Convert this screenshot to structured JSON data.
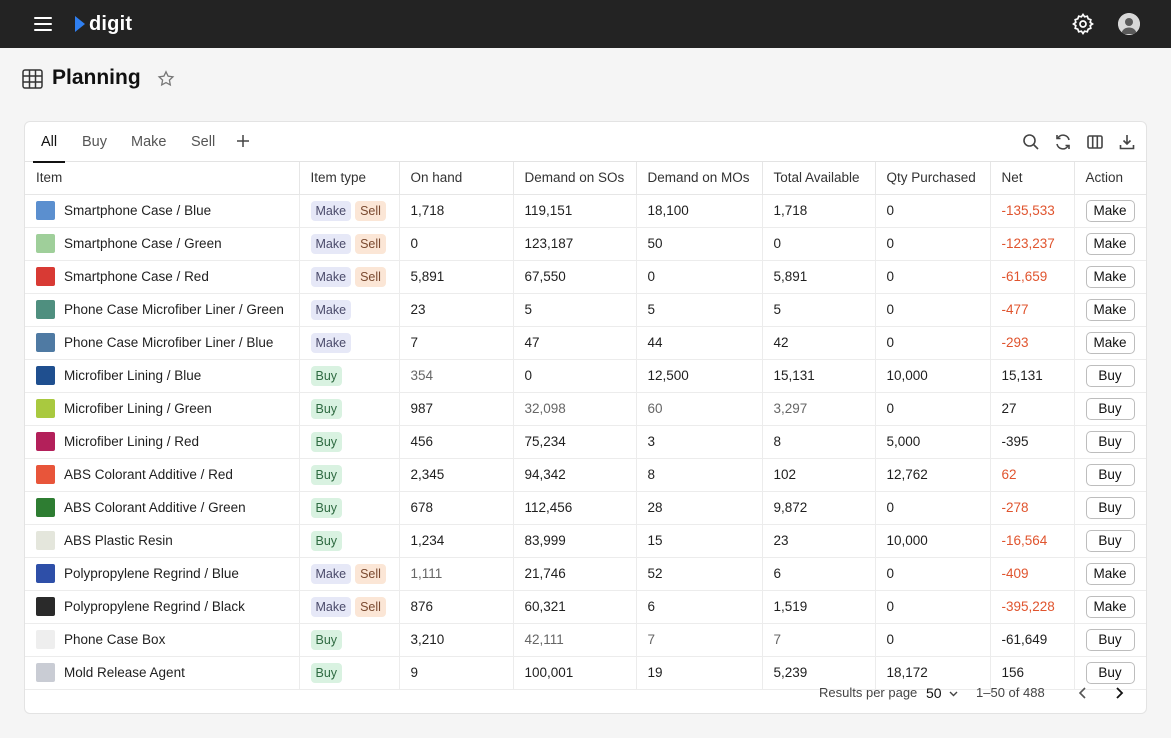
{
  "app": {
    "name": "digit"
  },
  "page": {
    "title": "Planning"
  },
  "tabs": [
    {
      "label": "All",
      "active": true
    },
    {
      "label": "Buy",
      "active": false
    },
    {
      "label": "Make",
      "active": false
    },
    {
      "label": "Sell",
      "active": false
    }
  ],
  "toolbar_icons": [
    "search-icon",
    "refresh-icon",
    "columns-icon",
    "download-icon"
  ],
  "columns": [
    "Item",
    "Item type",
    "On hand",
    "Demand on SOs",
    "Demand on MOs",
    "Total Available",
    "Qty Purchased",
    "Net",
    "Action"
  ],
  "rows": [
    {
      "item": "Smartphone Case / Blue",
      "thumb": "#5b8fcf",
      "types": [
        "Make",
        "Sell"
      ],
      "on_hand": "1,718",
      "dem_so": "119,151",
      "dem_mo": "18,100",
      "total": "1,718",
      "qty": "0",
      "net": "-135,533",
      "net_red": true,
      "action": "Make"
    },
    {
      "item": "Smartphone Case / Green",
      "thumb": "#9fcf9a",
      "types": [
        "Make",
        "Sell"
      ],
      "on_hand": "0",
      "dem_so": "123,187",
      "dem_mo": "50",
      "total": "0",
      "qty": "0",
      "net": "-123,237",
      "net_red": true,
      "action": "Make"
    },
    {
      "item": "Smartphone Case / Red",
      "thumb": "#d83a34",
      "types": [
        "Make",
        "Sell"
      ],
      "on_hand": "5,891",
      "dem_so": "67,550",
      "dem_mo": "0",
      "total": "5,891",
      "qty": "0",
      "net": "-61,659",
      "net_red": true,
      "action": "Make"
    },
    {
      "item": "Phone Case Microfiber Liner / Green",
      "thumb": "#4f8f7f",
      "types": [
        "Make"
      ],
      "on_hand": "23",
      "dem_so": "5",
      "dem_mo": "5",
      "total": "5",
      "qty": "0",
      "net": "-477",
      "net_red": true,
      "action": "Make"
    },
    {
      "item": "Phone Case Microfiber Liner / Blue",
      "thumb": "#4f7aa3",
      "types": [
        "Make"
      ],
      "on_hand": "7",
      "dem_so": "47",
      "dem_mo": "44",
      "total": "42",
      "qty": "0",
      "net": "-293",
      "net_red": true,
      "action": "Make"
    },
    {
      "item": "Microfiber Lining / Blue",
      "thumb": "#1f4f8f",
      "types": [
        "Buy"
      ],
      "on_hand": "354",
      "on_hand_muted": true,
      "dem_so": "0",
      "dem_mo": "12,500",
      "total": "15,131",
      "qty": "10,000",
      "net": "15,131",
      "net_red": false,
      "action": "Buy"
    },
    {
      "item": "Microfiber Lining / Green",
      "thumb": "#a9c93f",
      "types": [
        "Buy"
      ],
      "on_hand": "987",
      "dem_so": "32,098",
      "dem_so_muted": true,
      "dem_mo": "60",
      "dem_mo_muted": true,
      "total": "3,297",
      "total_muted": true,
      "qty": "0",
      "net": "27",
      "net_red": false,
      "action": "Buy"
    },
    {
      "item": "Microfiber Lining / Red",
      "thumb": "#b3205a",
      "types": [
        "Buy"
      ],
      "on_hand": "456",
      "dem_so": "75,234",
      "dem_mo": "3",
      "total": "8",
      "qty": "5,000",
      "net": "-395",
      "net_red": false,
      "action": "Buy"
    },
    {
      "item": "ABS Colorant Additive / Red",
      "thumb": "#e8553a",
      "types": [
        "Buy"
      ],
      "on_hand": "2,345",
      "dem_so": "94,342",
      "dem_mo": "8",
      "total": "102",
      "qty": "12,762",
      "net": "62",
      "net_red": true,
      "action": "Buy"
    },
    {
      "item": "ABS Colorant Additive / Green",
      "thumb": "#2e7d32",
      "types": [
        "Buy"
      ],
      "on_hand": "678",
      "dem_so": "112,456",
      "dem_mo": "28",
      "total": "9,872",
      "qty": "0",
      "net": "-278",
      "net_red": true,
      "action": "Buy"
    },
    {
      "item": "ABS Plastic Resin",
      "thumb": "#e4e6dc",
      "types": [
        "Buy"
      ],
      "on_hand": "1,234",
      "dem_so": "83,999",
      "dem_mo": "15",
      "total": "23",
      "qty": "10,000",
      "net": "-16,564",
      "net_red": true,
      "action": "Buy"
    },
    {
      "item": "Polypropylene Regrind / Blue",
      "thumb": "#2e4fa8",
      "types": [
        "Make",
        "Sell"
      ],
      "on_hand": "1,111",
      "on_hand_muted": true,
      "dem_so": "21,746",
      "dem_mo": "52",
      "total": "6",
      "qty": "0",
      "net": "-409",
      "net_red": true,
      "action": "Make"
    },
    {
      "item": "Polypropylene Regrind / Black",
      "thumb": "#2a2a2a",
      "types": [
        "Make",
        "Sell"
      ],
      "on_hand": "876",
      "dem_so": "60,321",
      "dem_mo": "6",
      "total": "1,519",
      "qty": "0",
      "net": "-395,228",
      "net_red": true,
      "action": "Make"
    },
    {
      "item": "Phone Case Box",
      "thumb": "#eeeeee",
      "types": [
        "Buy"
      ],
      "on_hand": "3,210",
      "dem_so": "42,111",
      "dem_so_muted": true,
      "dem_mo": "7",
      "dem_mo_muted": true,
      "total": "7",
      "total_muted": true,
      "qty": "0",
      "net": "-61,649",
      "net_red": false,
      "action": "Buy"
    },
    {
      "item": "Mold Release Agent",
      "thumb": "#c9ccd4",
      "types": [
        "Buy"
      ],
      "on_hand": "9",
      "dem_so": "100,001",
      "dem_mo": "19",
      "total": "5,239",
      "qty": "18,172",
      "net": "156",
      "net_red": false,
      "action": "Buy"
    }
  ],
  "footer": {
    "results_per_page_label": "Results per page",
    "results_per_page_value": "50",
    "range": "1–50 of 488"
  },
  "colors": {
    "topbar": "#232323",
    "net_negative": "#e0542e",
    "logo_accent": "#2f7ff0"
  }
}
